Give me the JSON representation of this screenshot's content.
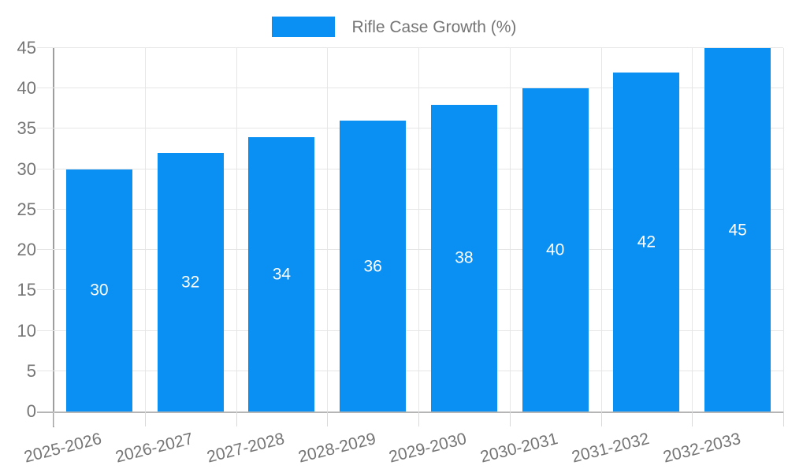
{
  "legend": {
    "label": "Rifle Case Growth (%)"
  },
  "colors": {
    "bar": "#0A8FF2",
    "grid": "#E6E6E6",
    "axis_y": "#9E9E9E",
    "axis_x": "#B5B5B5",
    "tick": "#D9D9D9",
    "text": "#757575",
    "value_label": "#FFFFFF",
    "background": "#FFFFFF"
  },
  "chart_data": {
    "type": "bar",
    "title": "",
    "series_label": "Rifle Case Growth (%)",
    "categories": [
      "2025-2026",
      "2026-2027",
      "2027-2028",
      "2028-2029",
      "2029-2030",
      "2030-2031",
      "2031-2032",
      "2032-2033"
    ],
    "values": [
      30,
      32,
      34,
      36,
      38,
      40,
      42,
      45
    ],
    "xlabel": "",
    "ylabel": "",
    "ylim": [
      0,
      45
    ],
    "ytick_step": 5,
    "yticks": [
      0,
      5,
      10,
      15,
      20,
      25,
      30,
      35,
      40,
      45
    ],
    "grid": true,
    "legend_position": "top",
    "value_labels": "inside-center",
    "x_label_rotation_deg": -14
  }
}
